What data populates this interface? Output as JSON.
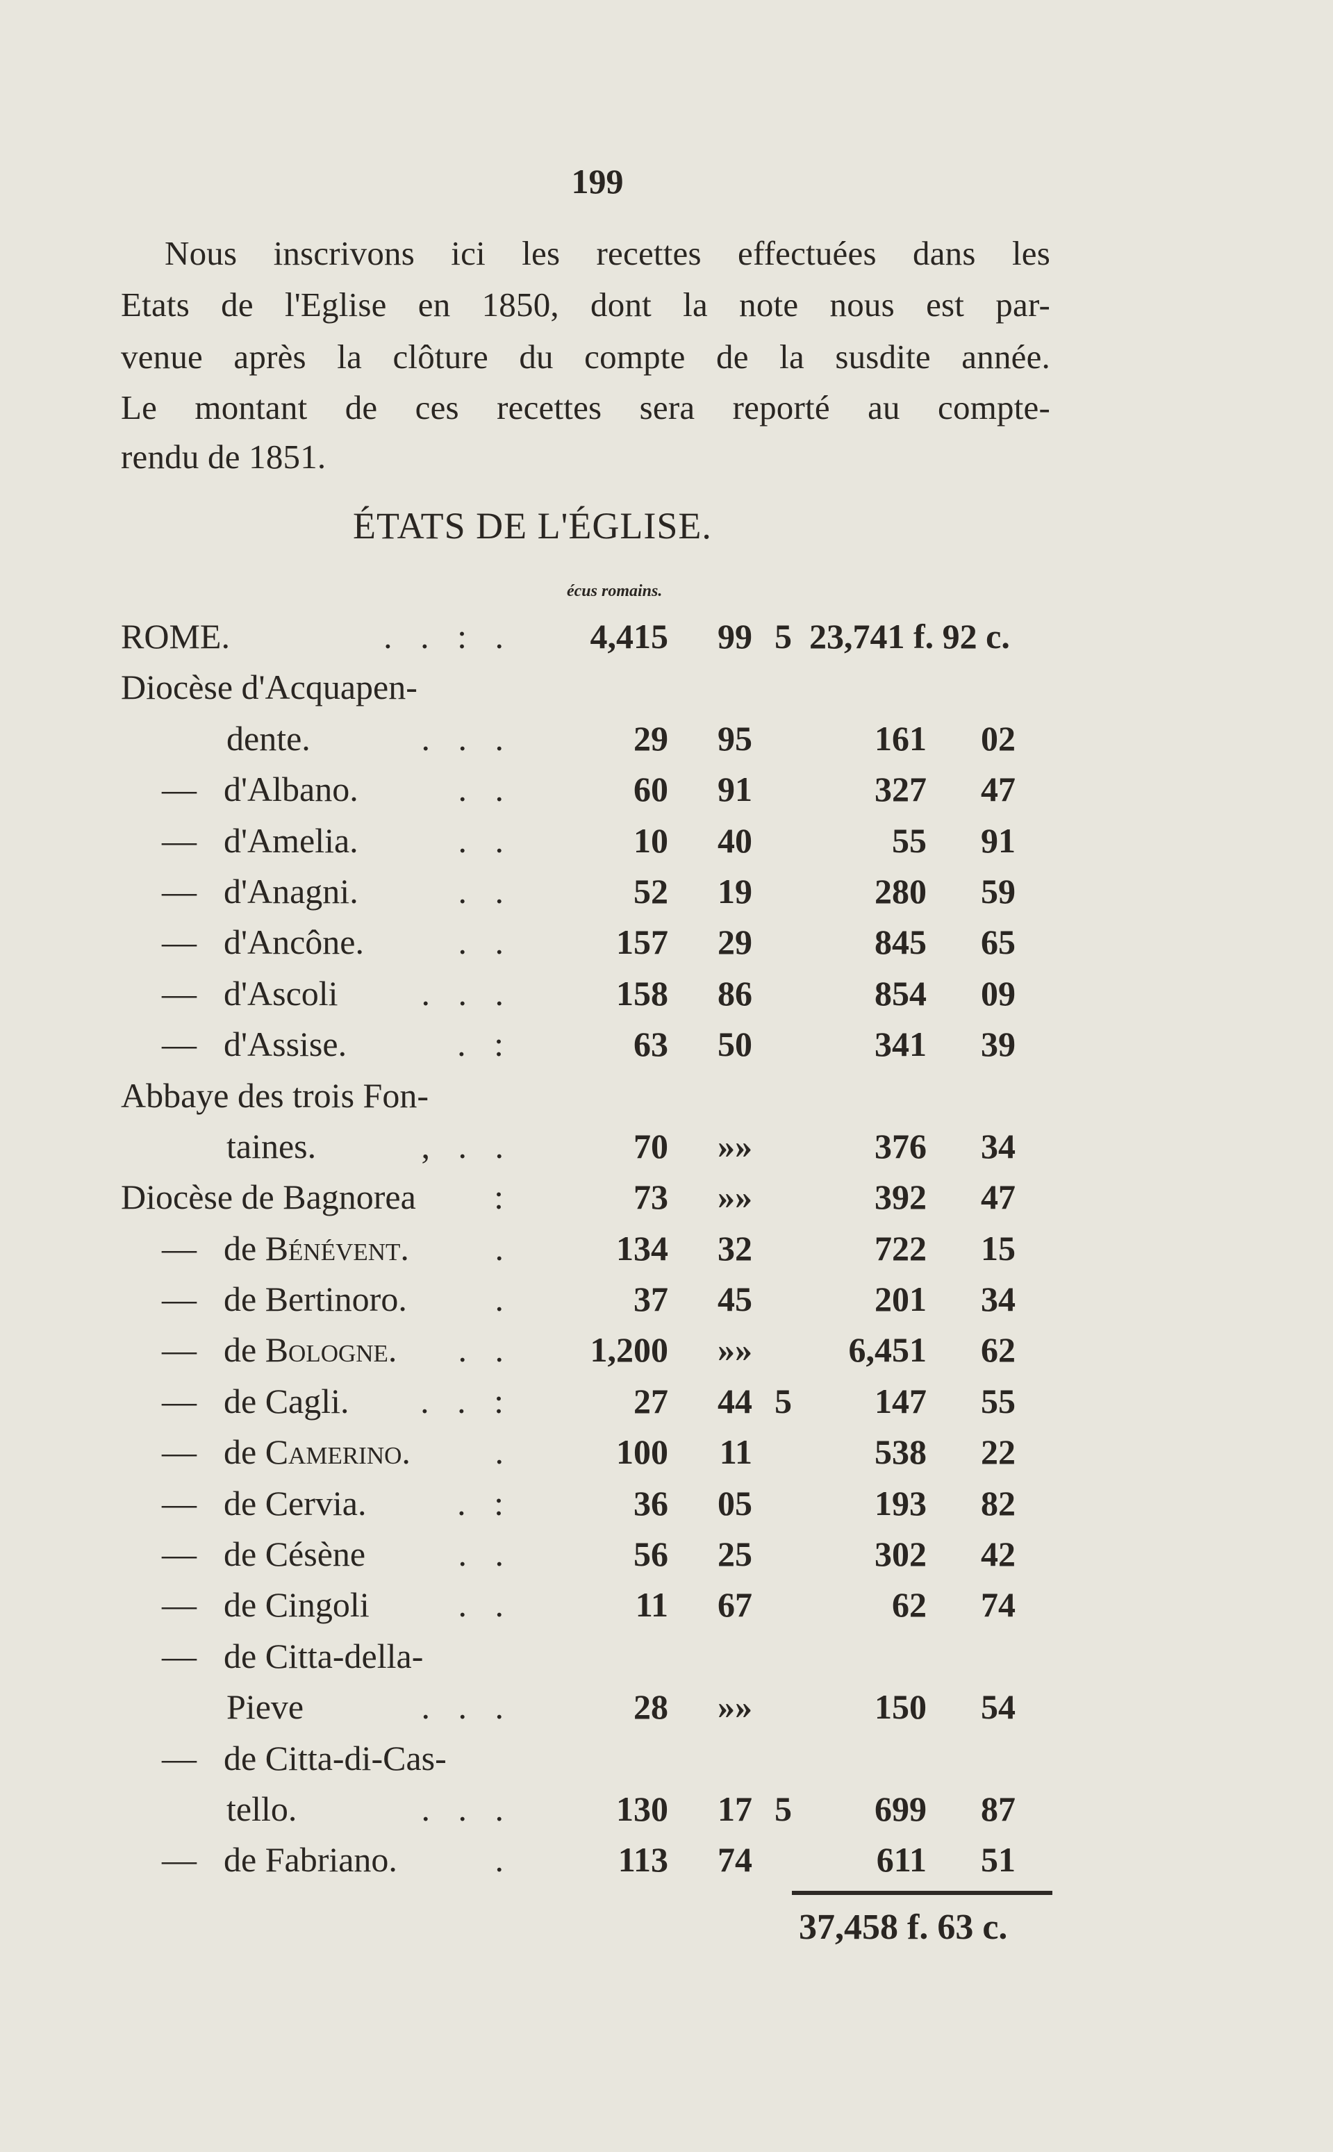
{
  "page_number": "199",
  "intro": {
    "lines": [
      "Nous inscrivons ici les recettes effectuées dans les",
      "Etats de l'Eglise en 1850, dont la note nous est par-",
      "venue après la clôture du compte de la susdite année.",
      "Le montant de ces recettes sera reporté au compte-",
      "rendu de 1851."
    ]
  },
  "heading": "ÉTATS DE L'ÉGLISE.",
  "units_label": "écus romains.",
  "rows": [
    {
      "label": "ROME.",
      "leader": ". . : .",
      "ecus": "4,415",
      "baj": "99",
      "frac": "5",
      "francs": "23,741 f.",
      "cents": "92 c.",
      "style": "rome"
    },
    {
      "label": "Diocèse d'Acquapen-",
      "style": "main"
    },
    {
      "label": "dente.",
      "leader": ". . .",
      "ecus": "29",
      "baj": "95",
      "francs": "161",
      "cents": "02",
      "style": "cont"
    },
    {
      "label": "d'Albano.",
      "leader": ". .",
      "ecus": "60",
      "baj": "91",
      "francs": "327",
      "cents": "47",
      "style": "dash"
    },
    {
      "label": "d'Amelia.",
      "leader": ". .",
      "ecus": "10",
      "baj": "40",
      "francs": "55",
      "cents": "91",
      "style": "dash"
    },
    {
      "label": "d'Anagni.",
      "leader": ". .",
      "ecus": "52",
      "baj": "19",
      "francs": "280",
      "cents": "59",
      "style": "dash"
    },
    {
      "label": "d'Ancône.",
      "leader": ". .",
      "ecus": "157",
      "baj": "29",
      "francs": "845",
      "cents": "65",
      "style": "dash"
    },
    {
      "label": "d'Ascoli",
      "leader": ". . .",
      "ecus": "158",
      "baj": "86",
      "francs": "854",
      "cents": "09",
      "style": "dash"
    },
    {
      "label": "d'Assise.",
      "leader": ". :",
      "ecus": "63",
      "baj": "50",
      "francs": "341",
      "cents": "39",
      "style": "dash"
    },
    {
      "label": "Abbaye des trois Fon-",
      "style": "main"
    },
    {
      "label": "taines.",
      "leader": ", . .",
      "ecus": "70",
      "baj": "»»",
      "francs": "376",
      "cents": "34",
      "style": "cont"
    },
    {
      "label": "Diocèse de Bagnorea",
      "leader": ":",
      "ecus": "73",
      "baj": "»»",
      "francs": "392",
      "cents": "47",
      "style": "main"
    },
    {
      "label": "de ",
      "label_sc": "Bénévent.",
      "leader": ".",
      "ecus": "134",
      "baj": "32",
      "francs": "722",
      "cents": "15",
      "style": "dash"
    },
    {
      "label": "de Bertinoro.",
      "leader": ".",
      "ecus": "37",
      "baj": "45",
      "francs": "201",
      "cents": "34",
      "style": "dash"
    },
    {
      "label": "de ",
      "label_sc": "Bologne.",
      "leader": ". .",
      "ecus": "1,200",
      "baj": "»»",
      "francs": "6,451",
      "cents": "62",
      "style": "dash"
    },
    {
      "label": "de Cagli.",
      "leader": ". . :",
      "ecus": "27",
      "baj": "44",
      "frac": "5",
      "francs": "147",
      "cents": "55",
      "style": "dash"
    },
    {
      "label": "de ",
      "label_sc": "Camerino.",
      "leader": ".",
      "ecus": "100",
      "baj": "11",
      "francs": "538",
      "cents": "22",
      "style": "dash"
    },
    {
      "label": "de Cervia.",
      "leader": ". :",
      "ecus": "36",
      "baj": "05",
      "francs": "193",
      "cents": "82",
      "style": "dash"
    },
    {
      "label": "de Césène",
      "leader": ". .",
      "ecus": "56",
      "baj": "25",
      "francs": "302",
      "cents": "42",
      "style": "dash"
    },
    {
      "label": "de Cingoli",
      "leader": ". .",
      "ecus": "11",
      "baj": "67",
      "francs": "62",
      "cents": "74",
      "style": "dash"
    },
    {
      "label": "de  Citta-della-",
      "style": "dash"
    },
    {
      "label": "Pieve",
      "leader": ". . .",
      "ecus": "28",
      "baj": "»»",
      "francs": "150",
      "cents": "54",
      "style": "cont"
    },
    {
      "label": "de Citta-di-Cas-",
      "style": "dash"
    },
    {
      "label": "tello.",
      "leader": ". . .",
      "ecus": "130",
      "baj": "17",
      "frac": "5",
      "francs": "699",
      "cents": "87",
      "style": "cont"
    },
    {
      "label": "de Fabriano.",
      "leader": ".",
      "ecus": "113",
      "baj": "74",
      "francs": "611",
      "cents": "51",
      "style": "dash"
    }
  ],
  "dash_glyph": "—",
  "total": "37,458 f. 63 c."
}
